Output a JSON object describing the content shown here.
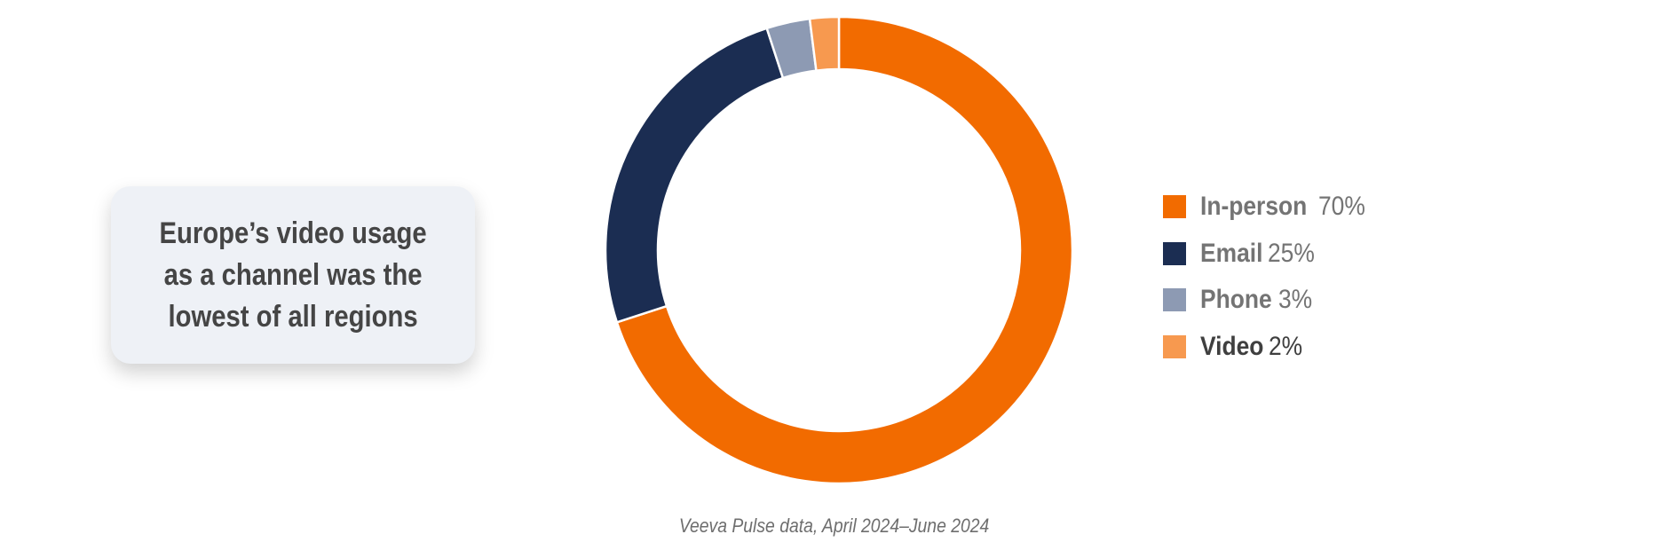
{
  "callout": {
    "lines": [
      "Europe’s video usage",
      "as a channel was the",
      "lowest of all regions"
    ]
  },
  "source": "Veeva Pulse data, April 2024–June 2024",
  "chart_data": {
    "type": "pie",
    "variant": "donut",
    "legend_position": "right",
    "highlight": "Video",
    "slices": [
      {
        "label": "In-person",
        "value": 70,
        "value_label": "70%",
        "color": "#f26b00"
      },
      {
        "label": "Email",
        "value": 25,
        "value_label": "25%",
        "color": "#1b2d52"
      },
      {
        "label": "Phone",
        "value": 3,
        "value_label": "3%",
        "color": "#8d9ab3"
      },
      {
        "label": "Video",
        "value": 2,
        "value_label": "2%",
        "color": "#f7994f"
      }
    ]
  }
}
